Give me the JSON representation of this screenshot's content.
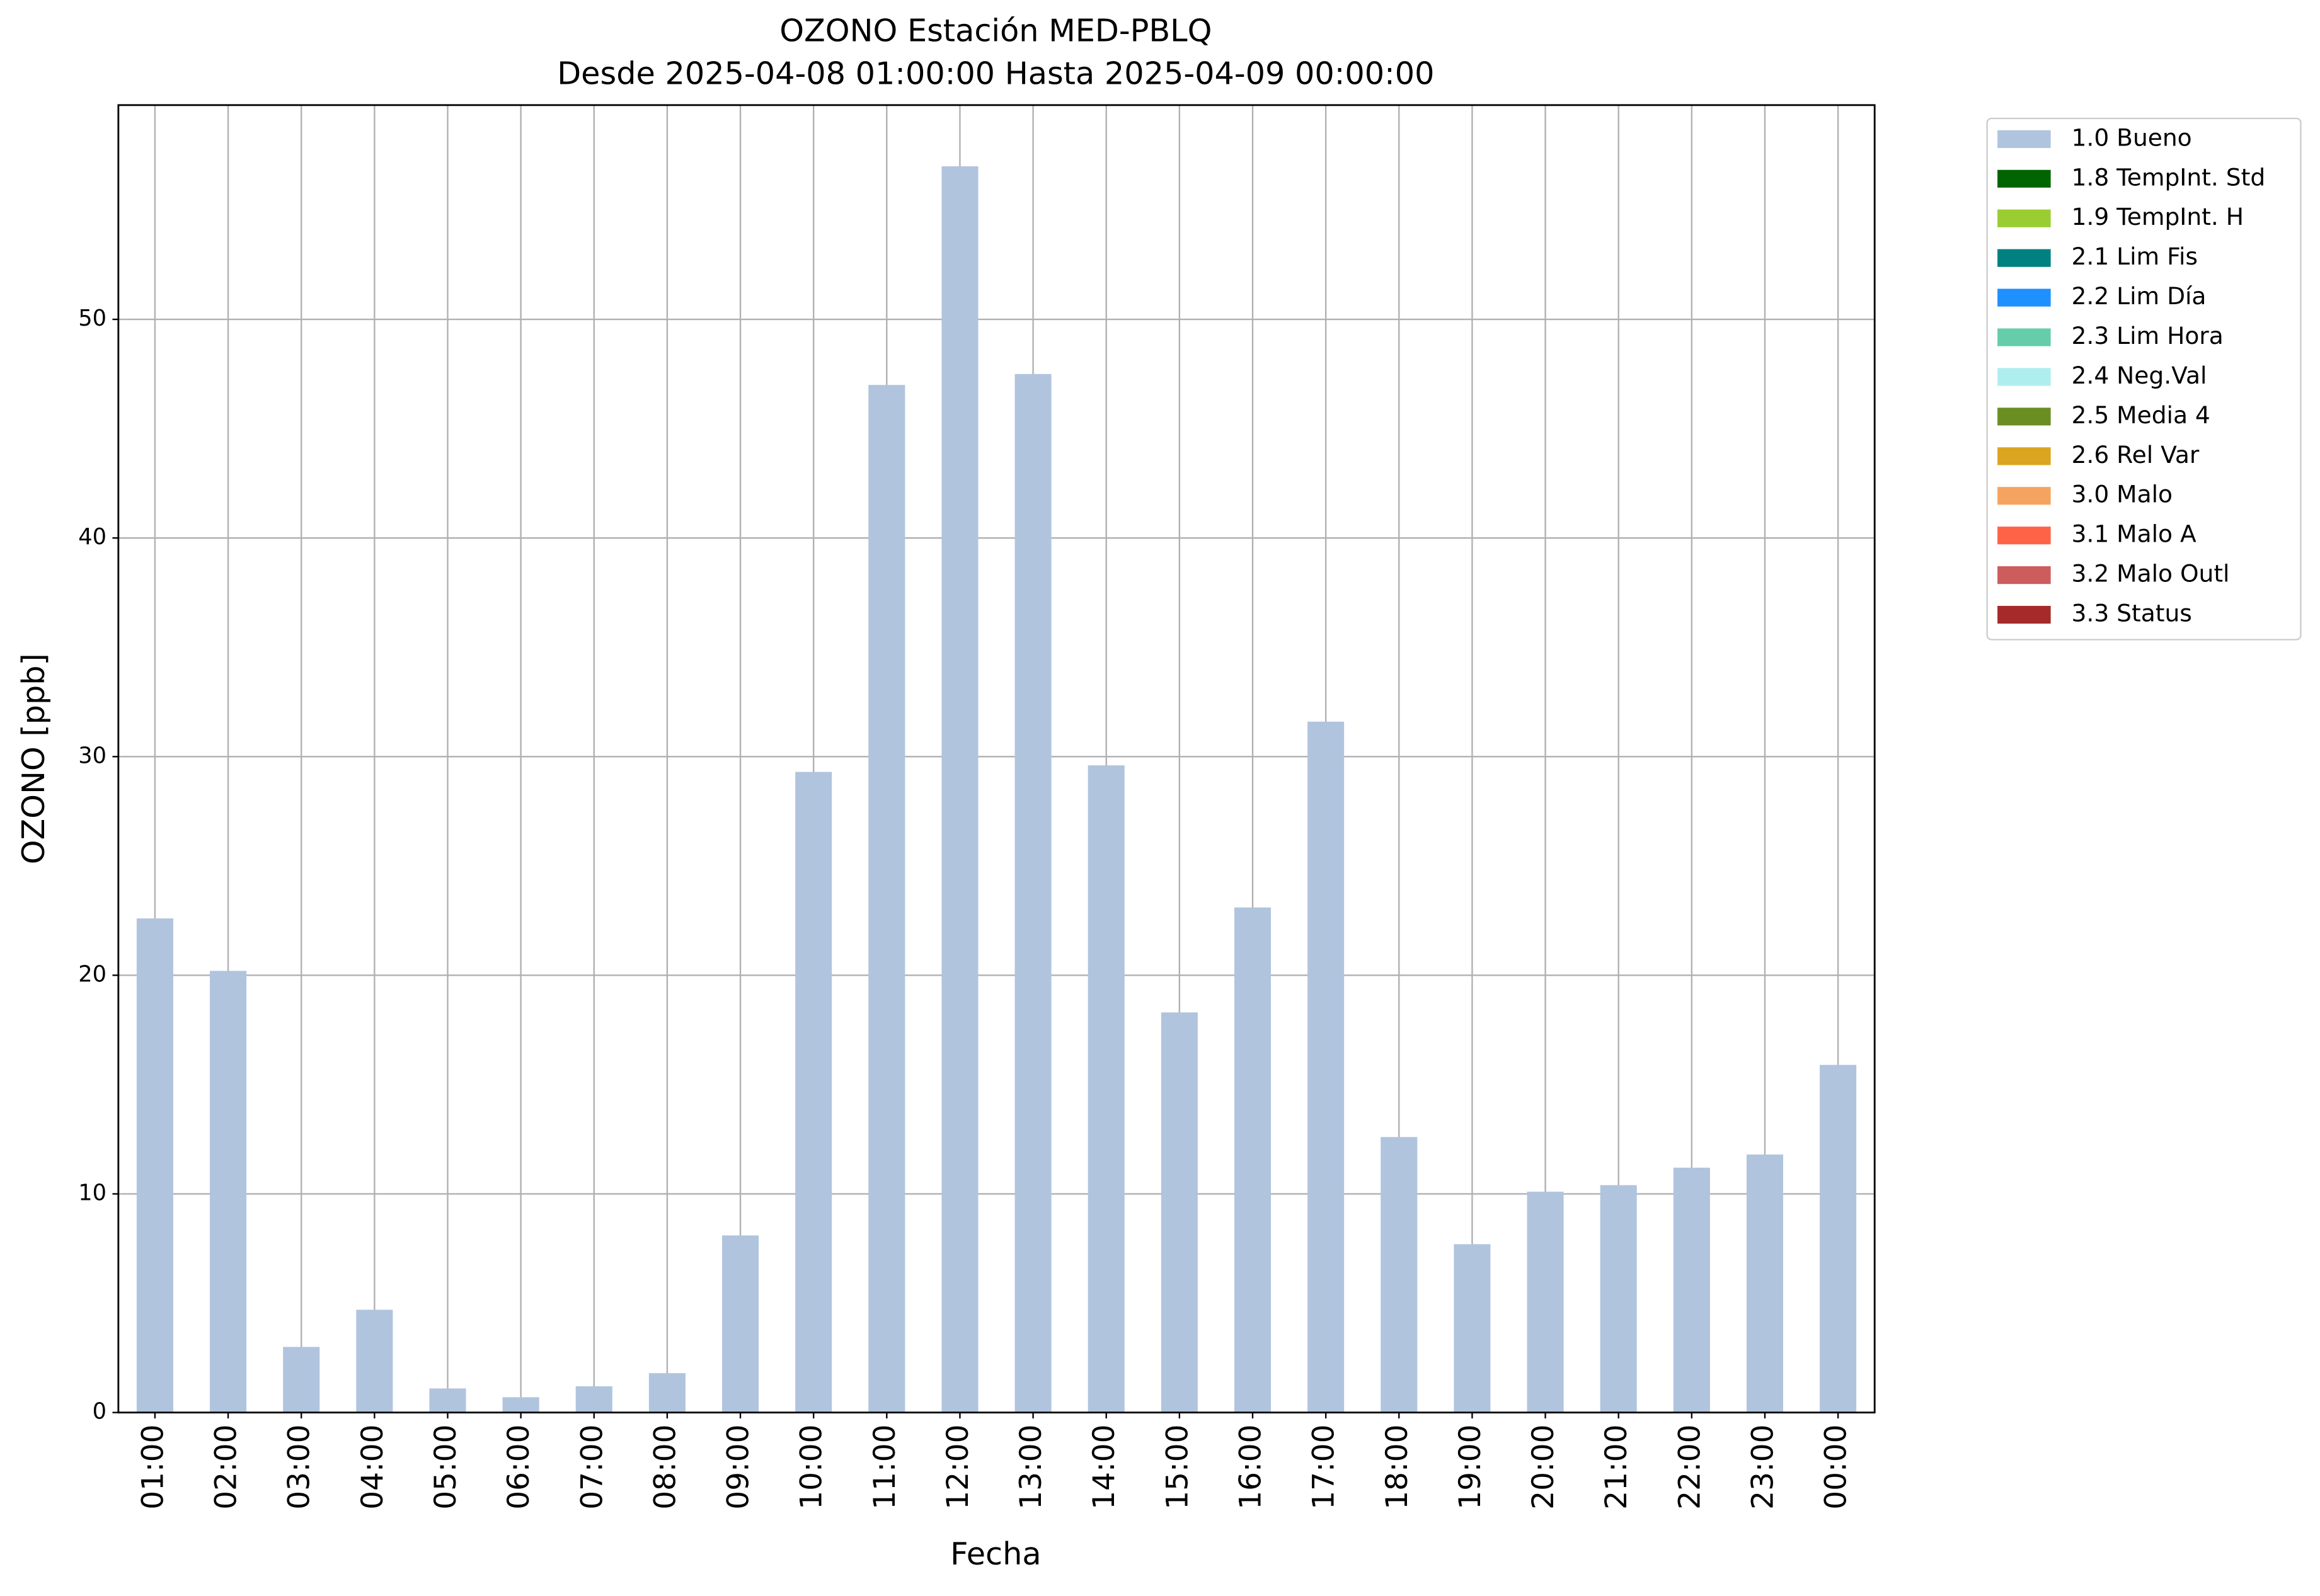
{
  "chart_data": {
    "type": "bar",
    "stacked": true,
    "title": "OZONO Estación MED-PBLQ",
    "subtitle": "Desde 2025-04-08 01:00:00 Hasta 2025-04-09 00:00:00",
    "x_label": "Fecha",
    "y_label": "OZONO [ppb]",
    "categories": [
      "01:00",
      "02:00",
      "03:00",
      "04:00",
      "05:00",
      "06:00",
      "07:00",
      "08:00",
      "09:00",
      "10:00",
      "11:00",
      "12:00",
      "13:00",
      "14:00",
      "15:00",
      "16:00",
      "17:00",
      "18:00",
      "19:00",
      "20:00",
      "21:00",
      "22:00",
      "23:00",
      "00:00"
    ],
    "series": [
      {
        "name": "1.0 Bueno",
        "color": "#b0c4de",
        "values": [
          22.6,
          20.2,
          3.0,
          4.7,
          1.1,
          0.7,
          1.2,
          1.8,
          8.1,
          29.3,
          47.0,
          57.0,
          47.5,
          29.6,
          18.3,
          23.1,
          31.6,
          12.6,
          7.7,
          10.1,
          10.4,
          11.2,
          11.8,
          15.9
        ]
      },
      {
        "name": "1.8 TempInt. Std",
        "color": "#006400",
        "values": [
          0,
          0,
          0,
          0,
          0,
          0,
          0,
          0,
          0,
          0,
          0,
          0,
          0,
          0,
          0,
          0,
          0,
          0,
          0,
          0,
          0,
          0,
          0,
          0
        ]
      },
      {
        "name": "1.9 TempInt. H",
        "color": "#9acd32",
        "values": [
          0,
          0,
          0,
          0,
          0,
          0,
          0,
          0,
          0,
          0,
          0,
          0,
          0,
          0,
          0,
          0,
          0,
          0,
          0,
          0,
          0,
          0,
          0,
          0
        ]
      },
      {
        "name": "2.1 Lim Fis",
        "color": "#008080",
        "values": [
          0,
          0,
          0,
          0,
          0,
          0,
          0,
          0,
          0,
          0,
          0,
          0,
          0,
          0,
          0,
          0,
          0,
          0,
          0,
          0,
          0,
          0,
          0,
          0
        ]
      },
      {
        "name": "2.2 Lim Día",
        "color": "#1e90ff",
        "values": [
          0,
          0,
          0,
          0,
          0,
          0,
          0,
          0,
          0,
          0,
          0,
          0,
          0,
          0,
          0,
          0,
          0,
          0,
          0,
          0,
          0,
          0,
          0,
          0
        ]
      },
      {
        "name": "2.3 Lim Hora",
        "color": "#66cdaa",
        "values": [
          0,
          0,
          0,
          0,
          0,
          0,
          0,
          0,
          0,
          0,
          0,
          0,
          0,
          0,
          0,
          0,
          0,
          0,
          0,
          0,
          0,
          0,
          0,
          0
        ]
      },
      {
        "name": "2.4 Neg.Val",
        "color": "#afeeee",
        "values": [
          0,
          0,
          0,
          0,
          0,
          0,
          0,
          0,
          0,
          0,
          0,
          0,
          0,
          0,
          0,
          0,
          0,
          0,
          0,
          0,
          0,
          0,
          0,
          0
        ]
      },
      {
        "name": "2.5 Media 4",
        "color": "#6b8e23",
        "values": [
          0,
          0,
          0,
          0,
          0,
          0,
          0,
          0,
          0,
          0,
          0,
          0,
          0,
          0,
          0,
          0,
          0,
          0,
          0,
          0,
          0,
          0,
          0,
          0
        ]
      },
      {
        "name": "2.6 Rel Var",
        "color": "#daa520",
        "values": [
          0,
          0,
          0,
          0,
          0,
          0,
          0,
          0,
          0,
          0,
          0,
          0,
          0,
          0,
          0,
          0,
          0,
          0,
          0,
          0,
          0,
          0,
          0,
          0
        ]
      },
      {
        "name": "3.0 Malo",
        "color": "#f4a460",
        "values": [
          0,
          0,
          0,
          0,
          0,
          0,
          0,
          0,
          0,
          0,
          0,
          0,
          0,
          0,
          0,
          0,
          0,
          0,
          0,
          0,
          0,
          0,
          0,
          0
        ]
      },
      {
        "name": "3.1 Malo A",
        "color": "#ff6347",
        "values": [
          0,
          0,
          0,
          0,
          0,
          0,
          0,
          0,
          0,
          0,
          0,
          0,
          0,
          0,
          0,
          0,
          0,
          0,
          0,
          0,
          0,
          0,
          0,
          0
        ]
      },
      {
        "name": "3.2 Malo Outl",
        "color": "#cd5c5c",
        "values": [
          0,
          0,
          0,
          0,
          0,
          0,
          0,
          0,
          0,
          0,
          0,
          0,
          0,
          0,
          0,
          0,
          0,
          0,
          0,
          0,
          0,
          0,
          0,
          0
        ]
      },
      {
        "name": "3.3 Status",
        "color": "#a52a2a",
        "values": [
          0,
          0,
          0,
          0,
          0,
          0,
          0,
          0,
          0,
          0,
          0,
          0,
          0,
          0,
          0,
          0,
          0,
          0,
          0,
          0,
          0,
          0,
          0,
          0
        ]
      }
    ],
    "ylim": [
      0,
      59.8
    ],
    "yticks": [
      0,
      10,
      20,
      30,
      40,
      50
    ],
    "grid": true,
    "legend": "outside-upper-right"
  }
}
